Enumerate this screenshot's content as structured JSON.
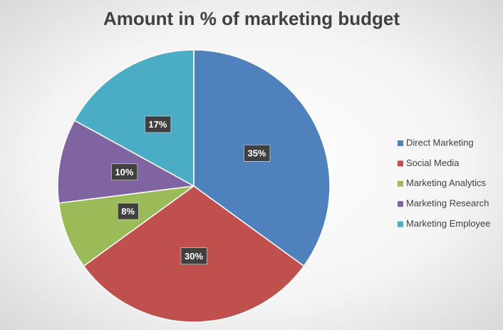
{
  "chart_data": {
    "type": "pie",
    "title": "Amount in % of marketing budget",
    "categories": [
      "Direct Marketing",
      "Social Media",
      "Marketing Analytics",
      "Marketing Research",
      "Marketing Employee"
    ],
    "values": [
      35,
      30,
      8,
      10,
      17
    ],
    "value_labels": [
      "35%",
      "30%",
      "8%",
      "10%",
      "17%"
    ],
    "colors": [
      "#4f81bd",
      "#c0504d",
      "#9bbb59",
      "#8064a2",
      "#4bacc6"
    ],
    "legend": "right"
  }
}
